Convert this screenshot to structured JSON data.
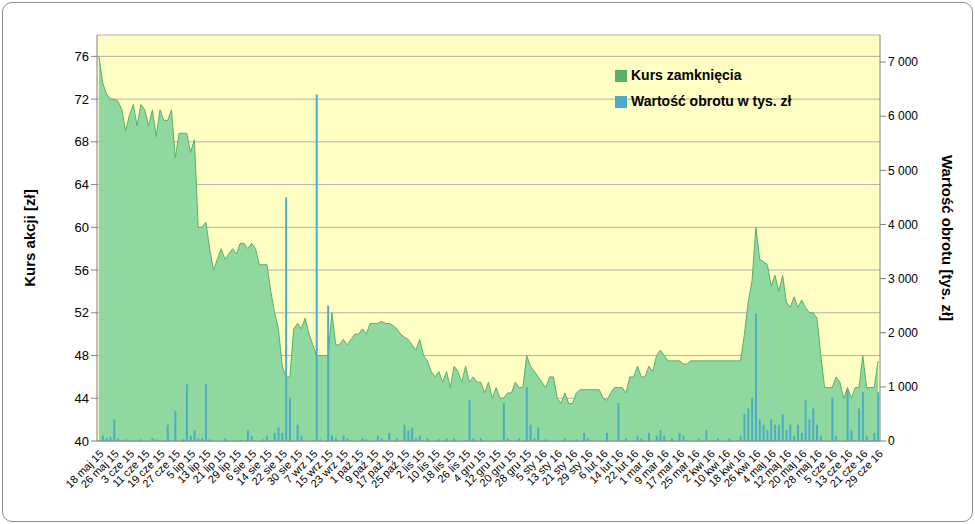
{
  "chart_data": {
    "type": "combo",
    "categories": [
      "18 maj 15",
      null,
      null,
      null,
      "26 maj 15",
      null,
      null,
      null,
      "3 cze 15",
      null,
      null,
      null,
      "11 cze 15",
      null,
      null,
      null,
      "19 cze 15",
      null,
      null,
      null,
      "27 cze 15",
      null,
      null,
      null,
      "5 lip 15",
      null,
      null,
      null,
      "13 lip 15",
      null,
      null,
      null,
      "21 lip 15",
      null,
      null,
      null,
      "29 lip 15",
      null,
      null,
      null,
      "6 sie 15",
      null,
      null,
      null,
      "14 sie 15",
      null,
      null,
      null,
      "22 sie 15",
      null,
      null,
      null,
      "30 sie 15",
      null,
      null,
      null,
      "7 wrz 15",
      null,
      null,
      null,
      "15 wrz 15",
      null,
      null,
      null,
      "23 wrz 15",
      null,
      null,
      null,
      "1 paź 15",
      null,
      null,
      null,
      "9 paź 15",
      null,
      null,
      null,
      "17 paź 15",
      null,
      null,
      null,
      "25 paź 15",
      null,
      null,
      null,
      "2 lis 15",
      null,
      null,
      null,
      "10 lis 15",
      null,
      null,
      null,
      "18 lis 15",
      null,
      null,
      null,
      "26 lis 15",
      null,
      null,
      null,
      "4 gru 15",
      null,
      null,
      null,
      "12 gru 15",
      null,
      null,
      null,
      "20 gru 15",
      null,
      null,
      null,
      "28 gru 15",
      null,
      null,
      null,
      "5 sty 16",
      null,
      null,
      null,
      "13 sty 16",
      null,
      null,
      null,
      "21 sty 16",
      null,
      null,
      null,
      "29 sty 16",
      null,
      null,
      null,
      "6 lut 16",
      null,
      null,
      null,
      "14 lut 16",
      null,
      null,
      null,
      "22 lut 16",
      null,
      null,
      null,
      "1 mar 16",
      null,
      null,
      null,
      "9 mar 16",
      null,
      null,
      null,
      "17 mar 16",
      null,
      null,
      null,
      "25 mar 16",
      null,
      null,
      null,
      "2 kwi 16",
      null,
      null,
      null,
      "10 kwi 16",
      null,
      null,
      null,
      "18 kwi 16",
      null,
      null,
      null,
      "26 kwi 16",
      null,
      null,
      null,
      "4 maj 16",
      null,
      null,
      null,
      "12 maj 16",
      null,
      null,
      null,
      "20 maj 16",
      null,
      null,
      null,
      "28 maj 16",
      null,
      null,
      null,
      "5 cze 16",
      null,
      null,
      null,
      "13 cze 16",
      null,
      null,
      null,
      "21 cze 16",
      null,
      null,
      null,
      "29 cze 16"
    ],
    "series": [
      {
        "name": "Kurs zamknięcia",
        "type": "area",
        "color": "#8fd9a0",
        "values": [
          76,
          73.5,
          72.5,
          72,
          72,
          71.8,
          71,
          69,
          70.5,
          71.5,
          69.5,
          71.5,
          71,
          69.5,
          71,
          68.5,
          71,
          70,
          70,
          71,
          66.5,
          68.8,
          68.8,
          68.8,
          67,
          68.2,
          60,
          60,
          60.5,
          58,
          56,
          57,
          58,
          57,
          57.5,
          58,
          57.5,
          58.5,
          58.5,
          58,
          58.5,
          58,
          56.5,
          56.5,
          56.5,
          54,
          52,
          50.5,
          47,
          46,
          46,
          50.5,
          51,
          50.5,
          51.5,
          50,
          49,
          48,
          48,
          48,
          48,
          52,
          49,
          49,
          49.5,
          49,
          49.5,
          50,
          50,
          50.5,
          50,
          51,
          51,
          51,
          51.2,
          51,
          51,
          50.8,
          50.5,
          50,
          49.7,
          49.5,
          49,
          48.5,
          49.5,
          48,
          47.5,
          46.5,
          46,
          46.5,
          45.5,
          46.5,
          45,
          47,
          46.5,
          45.5,
          47,
          45.5,
          46,
          45.5,
          45.5,
          44.5,
          45.5,
          44,
          45,
          44,
          44,
          44.5,
          44.5,
          45.5,
          45,
          45,
          48,
          47,
          46.5,
          46,
          45.5,
          45,
          46,
          46,
          44,
          43.5,
          44.5,
          43.5,
          43.5,
          44.5,
          44.8,
          44.8,
          44.8,
          44.8,
          44.8,
          44.8,
          44,
          43.8,
          44.5,
          45,
          45,
          45,
          44.5,
          46,
          46,
          47,
          46,
          46,
          47,
          46.5,
          48,
          48.5,
          48,
          47.5,
          47.5,
          47.5,
          47.5,
          47.2,
          47.2,
          47.5,
          47.5,
          47.5,
          47.5,
          47.5,
          47.5,
          47.5,
          47.5,
          47.5,
          47.5,
          47.5,
          47.5,
          47.5,
          47.5,
          50,
          53,
          55,
          60,
          57,
          56.8,
          56.5,
          54.5,
          55.5,
          54,
          55.5,
          53,
          52.5,
          53.5,
          52.5,
          53.2,
          52.5,
          52,
          52,
          51.5,
          48,
          45,
          45,
          45,
          46,
          45.5,
          44,
          45,
          44,
          45,
          45,
          48,
          45,
          45,
          45,
          47.5
        ]
      },
      {
        "name": "Wartość obrotu w tys. zł",
        "type": "bar",
        "axis": "y2",
        "color": "#4bacc6",
        "values": [
          0,
          100,
          50,
          80,
          400,
          50,
          0,
          30,
          0,
          20,
          0,
          30,
          0,
          0,
          50,
          30,
          0,
          0,
          300,
          0,
          550,
          0,
          30,
          1050,
          100,
          200,
          50,
          50,
          1050,
          30,
          0,
          0,
          0,
          50,
          0,
          0,
          0,
          20,
          0,
          200,
          100,
          0,
          0,
          30,
          100,
          0,
          150,
          250,
          150,
          4500,
          800,
          0,
          300,
          100,
          0,
          0,
          0,
          6400,
          30,
          0,
          2500,
          100,
          50,
          0,
          100,
          50,
          0,
          0,
          0,
          50,
          30,
          0,
          0,
          100,
          50,
          0,
          150,
          0,
          50,
          0,
          300,
          200,
          250,
          50,
          100,
          0,
          50,
          0,
          0,
          30,
          0,
          50,
          0,
          50,
          0,
          0,
          0,
          750,
          50,
          0,
          50,
          0,
          0,
          0,
          0,
          0,
          700,
          50,
          0,
          0,
          50,
          0,
          1000,
          300,
          50,
          250,
          0,
          30,
          0,
          0,
          0,
          0,
          50,
          0,
          0,
          30,
          0,
          150,
          50,
          0,
          0,
          0,
          0,
          150,
          0,
          0,
          700,
          0,
          50,
          0,
          0,
          100,
          50,
          0,
          150,
          0,
          100,
          200,
          100,
          0,
          50,
          0,
          150,
          100,
          0,
          0,
          0,
          50,
          0,
          200,
          0,
          0,
          50,
          0,
          0,
          50,
          0,
          0,
          100,
          500,
          600,
          800,
          2350,
          400,
          300,
          200,
          400,
          300,
          300,
          500,
          200,
          300,
          100,
          300,
          150,
          750,
          400,
          600,
          300,
          100,
          0,
          0,
          800,
          100,
          0,
          0,
          950,
          200,
          0,
          600,
          900,
          100,
          0,
          150,
          900
        ]
      }
    ],
    "ylabel": "Kurs akcji [zł]",
    "y2label": "Wartość obrotu [tys. zł]",
    "ylim": [
      40,
      78
    ],
    "yticks": [
      40,
      44,
      48,
      52,
      56,
      60,
      64,
      68,
      72,
      76
    ],
    "y2lim": [
      0,
      7500
    ],
    "y2ticks": [
      0,
      {
        "value": 1000,
        "label": "1 000"
      },
      {
        "value": 2000,
        "label": "2 000"
      },
      {
        "value": 3000,
        "label": "3 000"
      },
      {
        "value": 4000,
        "label": "4 000"
      },
      {
        "value": 5000,
        "label": "5 000"
      },
      {
        "value": 6000,
        "label": "6 000"
      },
      {
        "value": 7000,
        "label": "7 000"
      }
    ],
    "grid": true,
    "legend": "upper right"
  }
}
